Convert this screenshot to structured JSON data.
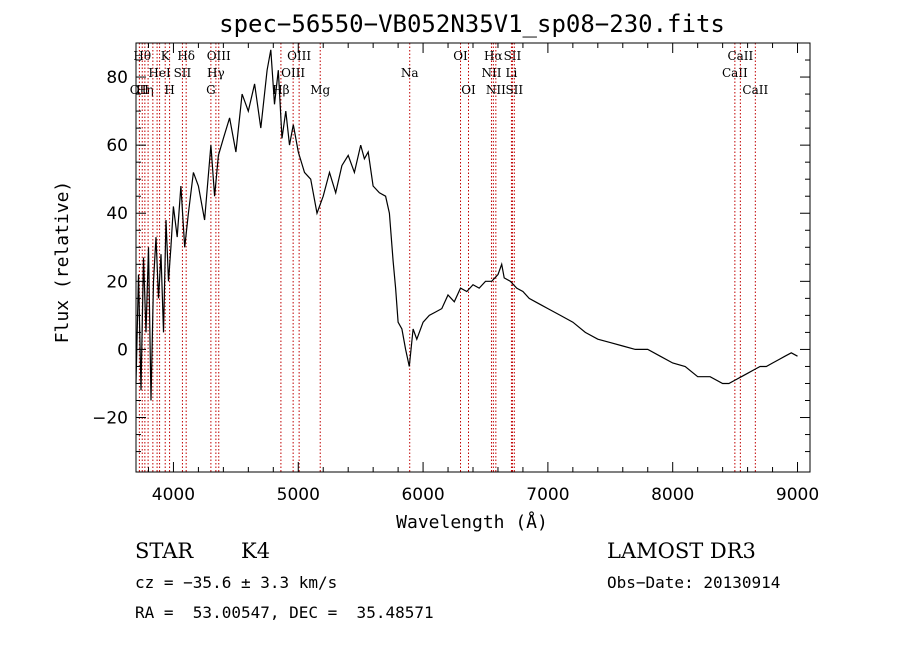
{
  "chart_data": {
    "type": "line",
    "title": "spec−56550−VB052N35V1_sp08−230.fits",
    "xlabel": "Wavelength (Å)",
    "ylabel": "Flux (relative)",
    "xlim": [
      3700,
      9100
    ],
    "ylim": [
      -36,
      90
    ],
    "x_ticks": [
      4000,
      5000,
      6000,
      7000,
      8000,
      9000
    ],
    "y_ticks": [
      -20,
      0,
      20,
      40,
      60,
      80
    ],
    "y_tick_labels": [
      "−20",
      "0",
      "20",
      "40",
      "60",
      "80"
    ],
    "series": [
      {
        "name": "flux",
        "x": [
          3700,
          3720,
          3740,
          3760,
          3780,
          3800,
          3820,
          3840,
          3860,
          3880,
          3900,
          3920,
          3940,
          3960,
          3980,
          4000,
          4030,
          4060,
          4090,
          4120,
          4160,
          4200,
          4250,
          4300,
          4330,
          4360,
          4400,
          4450,
          4500,
          4550,
          4600,
          4650,
          4700,
          4750,
          4780,
          4810,
          4840,
          4870,
          4900,
          4930,
          4960,
          5000,
          5050,
          5100,
          5150,
          5200,
          5250,
          5300,
          5350,
          5400,
          5450,
          5500,
          5530,
          5560,
          5600,
          5650,
          5700,
          5730,
          5760,
          5780,
          5800,
          5830,
          5860,
          5890,
          5920,
          5950,
          6000,
          6050,
          6100,
          6150,
          6200,
          6250,
          6300,
          6350,
          6400,
          6450,
          6500,
          6550,
          6600,
          6630,
          6650,
          6700,
          6750,
          6800,
          6850,
          6900,
          6950,
          7000,
          7100,
          7200,
          7300,
          7400,
          7500,
          7600,
          7700,
          7800,
          7900,
          8000,
          8100,
          8200,
          8300,
          8400,
          8450,
          8500,
          8550,
          8600,
          8650,
          8700,
          8750,
          8800,
          8850,
          8900,
          8950,
          9000
        ],
        "values": [
          -10,
          22,
          -12,
          27,
          5,
          30,
          -15,
          20,
          33,
          15,
          28,
          5,
          38,
          20,
          30,
          42,
          33,
          48,
          30,
          40,
          52,
          48,
          38,
          60,
          45,
          57,
          62,
          68,
          58,
          75,
          70,
          78,
          65,
          82,
          88,
          72,
          82,
          62,
          70,
          60,
          66,
          58,
          52,
          50,
          40,
          45,
          52,
          46,
          54,
          57,
          52,
          60,
          56,
          58,
          48,
          46,
          45,
          40,
          26,
          18,
          8,
          6,
          0,
          -5,
          6,
          3,
          8,
          10,
          11,
          12,
          16,
          14,
          18,
          17,
          19,
          18,
          20,
          20,
          22,
          25,
          21,
          20,
          18,
          17,
          15,
          14,
          13,
          12,
          10,
          8,
          5,
          3,
          2,
          1,
          0,
          0,
          -2,
          -4,
          -5,
          -8,
          -8,
          -10,
          -10,
          -9,
          -8,
          -7,
          -6,
          -5,
          -5,
          -4,
          -3,
          -2,
          -1,
          -2
        ]
      }
    ],
    "emission_lines": [
      {
        "wavelength": 3727,
        "label": "OII",
        "row": 2
      },
      {
        "wavelength": 3750,
        "label": "Hθ",
        "row": 0
      },
      {
        "wavelength": 3771,
        "label": "Hη",
        "row": 2
      },
      {
        "wavelength": 3797,
        "label": "",
        "row": 0
      },
      {
        "wavelength": 3835,
        "label": "",
        "row": 0
      },
      {
        "wavelength": 3869,
        "label": "",
        "row": 0
      },
      {
        "wavelength": 3889,
        "label": "HeI",
        "row": 1
      },
      {
        "wavelength": 3934,
        "label": "K",
        "row": 0
      },
      {
        "wavelength": 3969,
        "label": "H",
        "row": 2
      },
      {
        "wavelength": 4072,
        "label": "SII",
        "row": 1
      },
      {
        "wavelength": 4102,
        "label": "Hδ",
        "row": 0
      },
      {
        "wavelength": 4300,
        "label": "G",
        "row": 2
      },
      {
        "wavelength": 4340,
        "label": "Hγ",
        "row": 1
      },
      {
        "wavelength": 4363,
        "label": "OIII",
        "row": 0
      },
      {
        "wavelength": 4861,
        "label": "Hβ",
        "row": 2
      },
      {
        "wavelength": 4959,
        "label": "OIII",
        "row": 1
      },
      {
        "wavelength": 5007,
        "label": "OIII",
        "row": 0
      },
      {
        "wavelength": 5176,
        "label": "Mg",
        "row": 2
      },
      {
        "wavelength": 5893,
        "label": "Na",
        "row": 1
      },
      {
        "wavelength": 6300,
        "label": "OI",
        "row": 0
      },
      {
        "wavelength": 6364,
        "label": "OI",
        "row": 2
      },
      {
        "wavelength": 6548,
        "label": "NII",
        "row": 1
      },
      {
        "wavelength": 6563,
        "label": "Hα",
        "row": 0
      },
      {
        "wavelength": 6583,
        "label": "NII",
        "row": 2
      },
      {
        "wavelength": 6708,
        "label": "Li",
        "row": 1
      },
      {
        "wavelength": 6716,
        "label": "SII",
        "row": 0
      },
      {
        "wavelength": 6731,
        "label": "SII",
        "row": 2
      },
      {
        "wavelength": 8498,
        "label": "CaII",
        "row": 1
      },
      {
        "wavelength": 8542,
        "label": "CaII",
        "row": 0
      },
      {
        "wavelength": 8662,
        "label": "CaII",
        "row": 2
      }
    ]
  },
  "info": {
    "object_class": "STAR",
    "subclass": "K4",
    "redshift": "cz = −35.6 ± 3.3 km/s",
    "coords": "RA =  53.00547, DEC =  35.48571",
    "survey": "LAMOST DR3",
    "obs_date": "Obs−Date: 20130914"
  },
  "colors": {
    "line": "#000000",
    "emission": "#c00000",
    "background": "#ffffff"
  }
}
